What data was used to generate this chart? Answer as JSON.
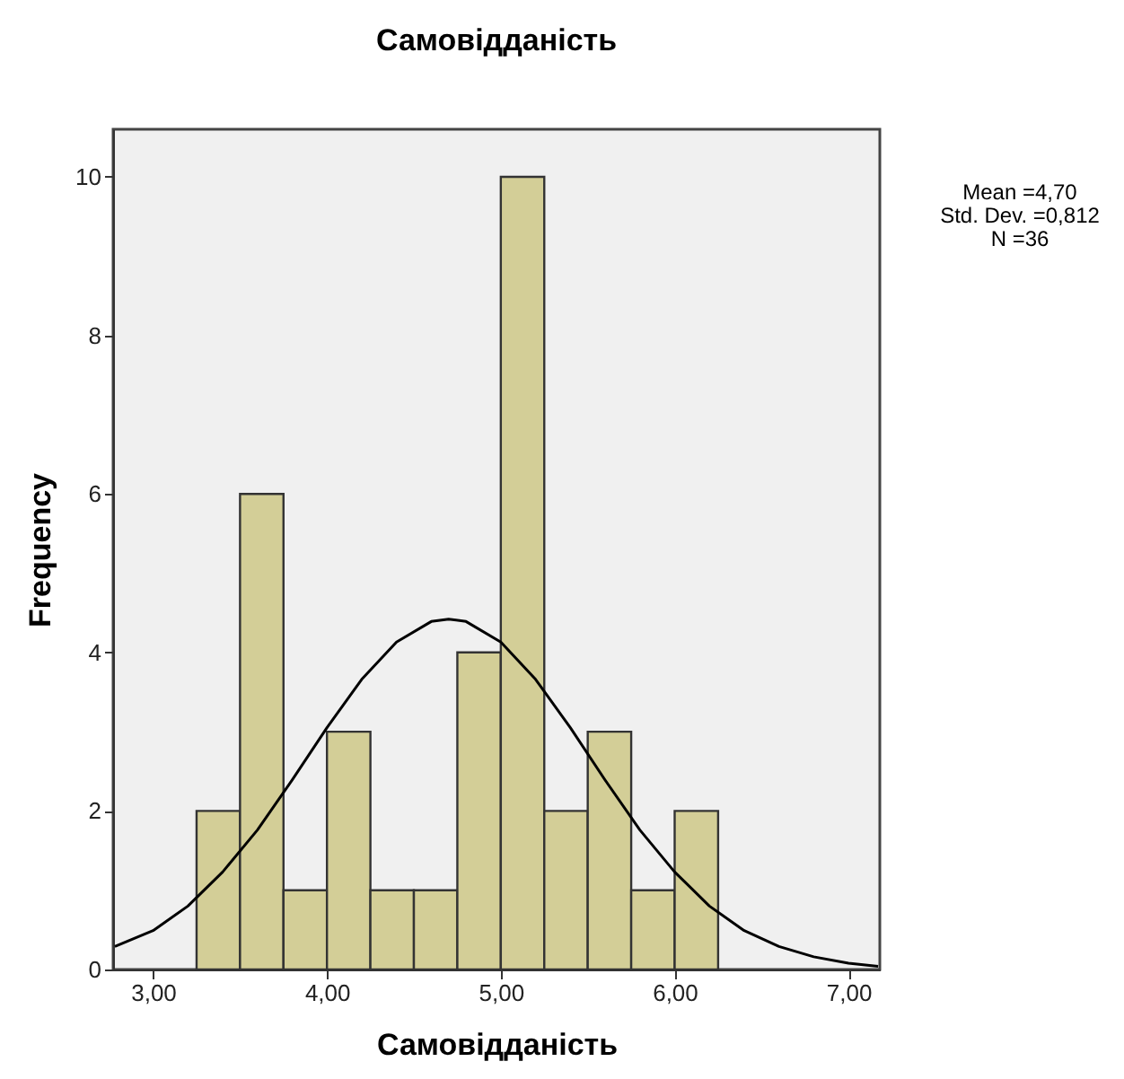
{
  "chart_data": {
    "type": "histogram",
    "title": "Самовідданість",
    "xlabel": "Самовідданість",
    "ylabel": "Frequency",
    "bins": [
      3.25,
      3.5,
      3.75,
      4.0,
      4.25,
      4.5,
      4.75,
      5.0,
      5.25,
      5.5,
      5.75,
      6.0,
      6.25
    ],
    "series": [
      {
        "type": "histogram",
        "color": "#d3ce97",
        "values": [
          2,
          6,
          1,
          3,
          1,
          1,
          4,
          10,
          2,
          3,
          1,
          2
        ]
      },
      {
        "type": "line",
        "color": "#000000",
        "x": [
          2.78,
          3.0,
          3.2,
          3.4,
          3.6,
          3.8,
          4.0,
          4.2,
          4.4,
          4.6,
          4.7,
          4.8,
          5.0,
          5.2,
          5.4,
          5.6,
          5.8,
          6.0,
          6.2,
          6.4,
          6.6,
          6.8,
          7.0,
          7.17
        ],
        "values": [
          0.29,
          0.49,
          0.8,
          1.23,
          1.76,
          2.39,
          3.05,
          3.66,
          4.13,
          4.39,
          4.42,
          4.39,
          4.13,
          3.66,
          3.05,
          2.39,
          1.76,
          1.23,
          0.8,
          0.49,
          0.29,
          0.16,
          0.08,
          0.04
        ]
      }
    ],
    "xlim": [
      2.77,
      7.18
    ],
    "xticks": [
      {
        "value": 3,
        "label": "3,00"
      },
      {
        "value": 4,
        "label": "4,00"
      },
      {
        "value": 5,
        "label": "5,00"
      },
      {
        "value": 6,
        "label": "6,00"
      },
      {
        "value": 7,
        "label": "7,00"
      }
    ],
    "ylim": [
      0,
      10.6
    ],
    "yticks": [
      0,
      2,
      4,
      6,
      8,
      10
    ],
    "grid": false,
    "annotations": [
      "Mean =4,70",
      "Std. Dev. =0,812",
      "N =36"
    ]
  }
}
